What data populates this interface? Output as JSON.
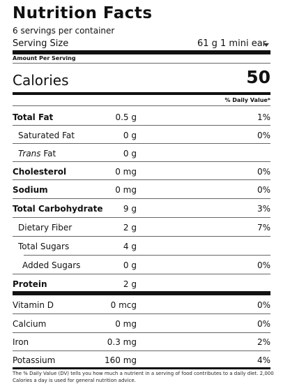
{
  "label": {
    "title": "Nutrition Facts",
    "servings_per_container": "6 servings per container",
    "serving_size_label": "Serving Size",
    "serving_size_value": "61 g 1 mini ear",
    "amount_per_serving": "Amount Per Serving",
    "calories_label": "Calories",
    "calories_value": "50",
    "daily_value_header": "% Daily Value*"
  },
  "nutrients": [
    {
      "label": "Total Fat",
      "amount": "0.5 g",
      "dv": "1%"
    },
    {
      "label": "Saturated Fat",
      "amount": "0 g",
      "dv": "0%"
    },
    {
      "label_italic": "Trans",
      "label": " Fat",
      "amount": "0 g",
      "dv": ""
    },
    {
      "label": "Cholesterol",
      "amount": "0 mg",
      "dv": "0%"
    },
    {
      "label": "Sodium",
      "amount": "0 mg",
      "dv": "0%"
    },
    {
      "label": "Total Carbohydrate",
      "amount": "9 g",
      "dv": "3%"
    },
    {
      "label": "Dietary Fiber",
      "amount": "2 g",
      "dv": "7%"
    },
    {
      "label": "Total Sugars",
      "amount": "4 g",
      "dv": ""
    },
    {
      "label": "Added Sugars",
      "amount": "0 g",
      "dv": "0%"
    },
    {
      "label": "Protein",
      "amount": "2 g",
      "dv": ""
    }
  ],
  "vitamins": [
    {
      "label": "Vitamin D",
      "amount": "0 mcg",
      "dv": "0%"
    },
    {
      "label": "Calcium",
      "amount": "0 mg",
      "dv": "0%"
    },
    {
      "label": "Iron",
      "amount": "0.3 mg",
      "dv": "2%"
    },
    {
      "label": "Potassium",
      "amount": "160 mg",
      "dv": "4%"
    }
  ],
  "footnote": "The % Daily Value (DV) tells you how much a nutrient in a serving of food contributes to a daily diet. 2,000 Calories a day is used for general nutrition advice."
}
